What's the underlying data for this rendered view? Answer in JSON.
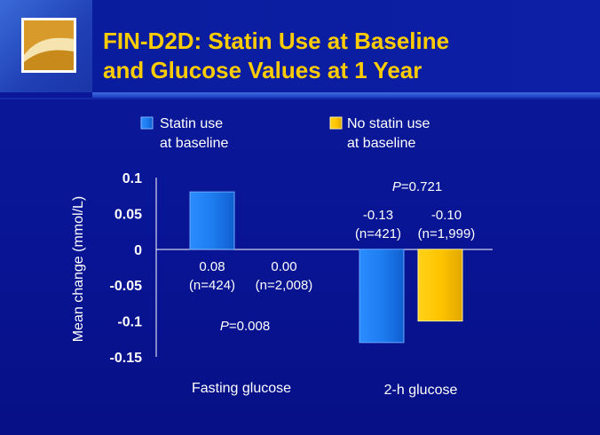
{
  "slide": {
    "title_line1": "FIN-D2D: Statin Use at Baseline",
    "title_line2": "and Glucose Values at 1 Year"
  },
  "colors": {
    "background": "#0a1690",
    "title": "#ffcc00",
    "statin": "#1e7df0",
    "no_statin": "#ffcc00"
  },
  "chart_data": {
    "type": "bar",
    "ylabel": "Mean change (mmol/L)",
    "ylim": [
      -0.15,
      0.1
    ],
    "yticks": [
      "0.1",
      "0.05",
      "0",
      "-0.05",
      "-0.1",
      "-0.15"
    ],
    "yticks_values": [
      0.1,
      0.05,
      0,
      -0.05,
      -0.1,
      -0.15
    ],
    "categories": [
      "Fasting glucose",
      "2-h glucose"
    ],
    "legend": {
      "statin_line1": "Statin use",
      "statin_line2": "at baseline",
      "nostatin_line1": "No statin use",
      "nostatin_line2": "at baseline"
    },
    "series": [
      {
        "name": "Statin use at baseline",
        "values": [
          0.08,
          -0.13
        ],
        "labels": [
          "0.08",
          "-0.13"
        ],
        "n_labels": [
          "(n=424)",
          "(n=421)"
        ]
      },
      {
        "name": "No statin use at baseline",
        "values": [
          0.0,
          -0.1
        ],
        "labels": [
          "0.00",
          "-0.10"
        ],
        "n_labels": [
          "(n=2,008)",
          "(n=1,999)"
        ]
      }
    ],
    "p_values": [
      {
        "prefix": "P",
        "value": "=0.008"
      },
      {
        "prefix": "P",
        "value": "=0.721"
      }
    ]
  }
}
